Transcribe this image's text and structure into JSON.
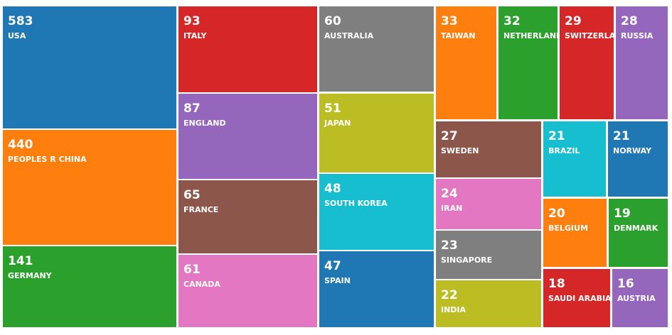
{
  "chart_data": {
    "type": "treemap",
    "categories": [
      "USA",
      "PEOPLES R CHINA",
      "GERMANY",
      "ITALY",
      "ENGLAND",
      "FRANCE",
      "CANADA",
      "AUSTRALIA",
      "JAPAN",
      "SOUTH KOREA",
      "SPAIN",
      "TAIWAN",
      "NETHERLANDS",
      "SWITZERLAND",
      "RUSSIA",
      "SWEDEN",
      "IRAN",
      "SINGAPORE",
      "INDIA",
      "BRAZIL",
      "NORWAY",
      "BELGIUM",
      "DENMARK",
      "SAUDI ARABIA",
      "AUSTRIA"
    ],
    "values": [
      583,
      440,
      141,
      93,
      87,
      65,
      61,
      60,
      51,
      48,
      47,
      33,
      32,
      29,
      28,
      27,
      24,
      23,
      22,
      21,
      21,
      20,
      19,
      18,
      16
    ],
    "colors": [
      "#1f77b4",
      "#ff7f0e",
      "#2ca02c",
      "#d62728",
      "#9467bd",
      "#8c564b",
      "#e377c2",
      "#7f7f7f",
      "#bcbd22",
      "#17becf",
      "#1f77b4",
      "#ff7f0e",
      "#2ca02c",
      "#d62728",
      "#9467bd",
      "#8c564b",
      "#e377c2",
      "#7f7f7f",
      "#bcbd22",
      "#17becf",
      "#1f77b4",
      "#ff7f0e",
      "#2ca02c",
      "#d62728",
      "#9467bd"
    ]
  }
}
